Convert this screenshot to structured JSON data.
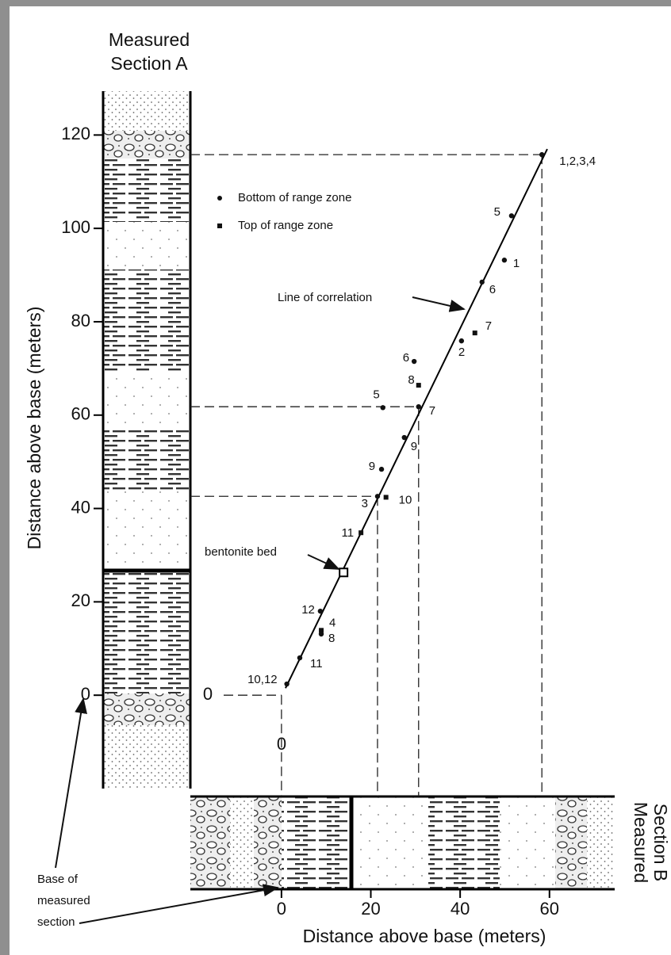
{
  "chart_data": {
    "type": "scatter",
    "section_a_label": [
      "Measured",
      "Section A"
    ],
    "section_b_label": [
      "Measured",
      "Section B"
    ],
    "ylabel": "Distance above base  (meters)",
    "xlabel": "Distance above base (meters)",
    "xlim": [
      -20.4,
      74.6
    ],
    "ylim": [
      -20,
      129.4
    ],
    "xticks": [
      0,
      20,
      40,
      60
    ],
    "yticks": [
      0,
      20,
      40,
      60,
      80,
      100,
      120
    ],
    "series": [
      {
        "name": "Bottom of range zone",
        "marker": "circle",
        "color": "#111111",
        "x": [
          58.3,
          51.5,
          49.9,
          44.9,
          40.3,
          29.7,
          22.7,
          30.7,
          27.5,
          22.4,
          21.5,
          8.7,
          8.9,
          4.1,
          1.2
        ],
        "values": [
          115.8,
          102.7,
          93.2,
          88.5,
          75.9,
          71.5,
          61.6,
          61.8,
          55.2,
          48.4,
          42.6,
          18.0,
          13.1,
          8.0,
          2.4
        ],
        "labels": [
          "1,2,3,4",
          "5",
          "1",
          "6",
          "2",
          "6",
          "5",
          "7",
          "9",
          "9",
          "3",
          "12",
          "8",
          "11",
          "10,12"
        ]
      },
      {
        "name": "Top of range zone",
        "marker": "square",
        "color": "#111111",
        "x": [
          43.3,
          30.7,
          23.4,
          17.8,
          8.9
        ],
        "values": [
          77.6,
          66.4,
          42.4,
          34.8,
          13.9
        ],
        "labels": [
          "7",
          "8",
          "10",
          "11",
          "4"
        ]
      }
    ],
    "line": {
      "name": "Line of correlation",
      "x": [
        0.9,
        59.5
      ],
      "values": [
        1.5,
        117
      ]
    },
    "bentonite": {
      "label": "bentonite bed",
      "x": 13.9,
      "y": 26.3
    },
    "projections": [
      {
        "x": 58.3,
        "y": 115.8
      },
      {
        "x": 30.7,
        "y": 61.8
      },
      {
        "x": 21.5,
        "y": 42.6
      },
      {
        "x": 0,
        "y": 0
      }
    ],
    "origin_labels": [
      "0",
      "0"
    ],
    "base_label": [
      "Base of",
      "measured",
      "section"
    ]
  }
}
